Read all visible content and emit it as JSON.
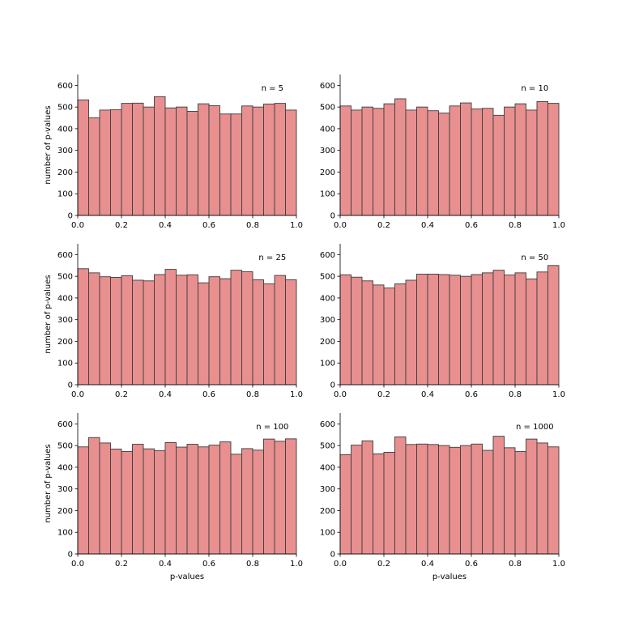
{
  "figure": {
    "bar_color": "#e88f8f",
    "edge_color": "#3c3c3c"
  },
  "chart_data": [
    {
      "type": "bar",
      "annotation": "n = 5",
      "ylabel": "number of p-values",
      "xlabel": "",
      "xlim": [
        0.0,
        1.0
      ],
      "ylim": [
        0,
        650
      ],
      "x_ticks": [
        "0.0",
        "0.2",
        "0.4",
        "0.6",
        "0.8",
        "1.0"
      ],
      "y_ticks": [
        "0",
        "100",
        "200",
        "300",
        "400",
        "500",
        "600"
      ],
      "bin_width": 0.05,
      "values": [
        533,
        450,
        486,
        488,
        517,
        518,
        500,
        548,
        496,
        500,
        480,
        515,
        506,
        468,
        468,
        505,
        500,
        514,
        517,
        486
      ]
    },
    {
      "type": "bar",
      "annotation": "n = 10",
      "ylabel": "",
      "xlabel": "",
      "xlim": [
        0.0,
        1.0
      ],
      "ylim": [
        0,
        650
      ],
      "x_ticks": [
        "0.0",
        "0.2",
        "0.4",
        "0.6",
        "0.8",
        "1.0"
      ],
      "y_ticks": [
        "0",
        "100",
        "200",
        "300",
        "400",
        "500",
        "600"
      ],
      "bin_width": 0.05,
      "values": [
        505,
        486,
        500,
        494,
        515,
        538,
        486,
        500,
        483,
        472,
        505,
        519,
        491,
        494,
        462,
        500,
        515,
        486,
        525,
        517
      ]
    },
    {
      "type": "bar",
      "annotation": "n = 25",
      "ylabel": "number of p-values",
      "xlabel": "",
      "xlim": [
        0.0,
        1.0
      ],
      "ylim": [
        0,
        650
      ],
      "x_ticks": [
        "0.0",
        "0.2",
        "0.4",
        "0.6",
        "0.8",
        "1.0"
      ],
      "y_ticks": [
        "0",
        "100",
        "200",
        "300",
        "400",
        "500",
        "600"
      ],
      "bin_width": 0.05,
      "values": [
        535,
        516,
        498,
        495,
        503,
        482,
        479,
        508,
        532,
        505,
        507,
        470,
        498,
        489,
        528,
        521,
        484,
        465,
        504,
        484
      ]
    },
    {
      "type": "bar",
      "annotation": "n = 50",
      "ylabel": "",
      "xlabel": "",
      "xlim": [
        0.0,
        1.0
      ],
      "ylim": [
        0,
        650
      ],
      "x_ticks": [
        "0.0",
        "0.2",
        "0.4",
        "0.6",
        "0.8",
        "1.0"
      ],
      "y_ticks": [
        "0",
        "100",
        "200",
        "300",
        "400",
        "500",
        "600"
      ],
      "bin_width": 0.05,
      "values": [
        507,
        496,
        479,
        460,
        446,
        465,
        482,
        510,
        510,
        508,
        505,
        500,
        508,
        516,
        528,
        506,
        516,
        488,
        520,
        550
      ]
    },
    {
      "type": "bar",
      "annotation": "n = 100",
      "ylabel": "number of p-values",
      "xlabel": "p-values",
      "xlim": [
        0.0,
        1.0
      ],
      "ylim": [
        0,
        650
      ],
      "x_ticks": [
        "0.0",
        "0.2",
        "0.4",
        "0.6",
        "0.8",
        "1.0"
      ],
      "y_ticks": [
        "0",
        "100",
        "200",
        "300",
        "400",
        "500",
        "600"
      ],
      "bin_width": 0.05,
      "values": [
        494,
        537,
        512,
        484,
        473,
        506,
        485,
        477,
        514,
        493,
        506,
        494,
        502,
        517,
        460,
        486,
        479,
        530,
        520,
        531
      ]
    },
    {
      "type": "bar",
      "annotation": "n = 1000",
      "ylabel": "",
      "xlabel": "p-values",
      "xlim": [
        0.0,
        1.0
      ],
      "ylim": [
        0,
        650
      ],
      "x_ticks": [
        "0.0",
        "0.2",
        "0.4",
        "0.6",
        "0.8",
        "1.0"
      ],
      "y_ticks": [
        "0",
        "100",
        "200",
        "300",
        "400",
        "500",
        "600"
      ],
      "bin_width": 0.05,
      "values": [
        458,
        502,
        522,
        462,
        469,
        540,
        505,
        507,
        505,
        500,
        492,
        500,
        507,
        478,
        543,
        490,
        473,
        530,
        512,
        494
      ]
    }
  ]
}
